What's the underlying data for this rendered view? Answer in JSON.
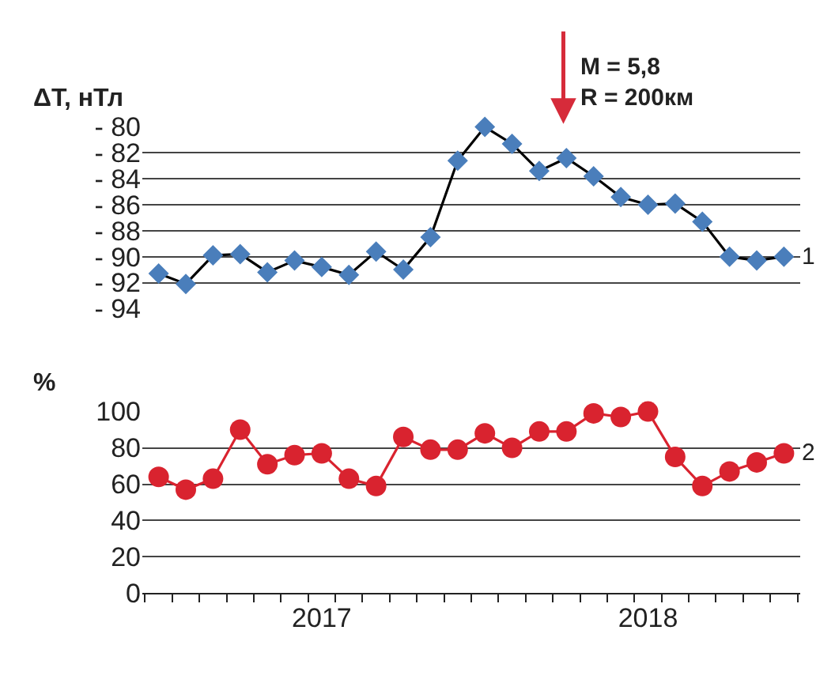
{
  "chart_data": [
    {
      "type": "line",
      "ylabel": "ΔT, нТл",
      "marker": "diamond",
      "grid": "y",
      "tick_labels": "y",
      "categories": [
        null,
        null,
        null,
        null,
        null,
        null,
        null,
        null,
        null,
        null,
        null,
        null,
        null,
        null,
        null,
        null,
        null,
        null,
        null,
        null,
        null,
        null,
        null,
        null
      ],
      "ylim": [
        -94,
        -80
      ],
      "yticks": [
        -80,
        -82,
        -84,
        -86,
        -88,
        -90,
        -92,
        -94
      ],
      "series": [
        {
          "name": "1",
          "color": "#4a7ebb",
          "values": [
            -91.3,
            -92.1,
            -89.9,
            -89.8,
            -91.2,
            -90.3,
            -90.8,
            -91.4,
            -89.6,
            -91.0,
            -88.5,
            -82.6,
            -80.0,
            -81.3,
            -83.4,
            -82.4,
            -83.8,
            -85.4,
            -86.0,
            -85.9,
            -87.3,
            -90.0,
            -90.3,
            -90.0
          ]
        }
      ],
      "annotations": [
        "M = 5,8\nR = 200км"
      ]
    },
    {
      "type": "line",
      "ylabel": "%",
      "marker": "circle",
      "grid": "y",
      "categories": [
        null,
        null,
        null,
        null,
        null,
        null,
        "2017",
        null,
        null,
        null,
        null,
        null,
        null,
        null,
        null,
        null,
        null,
        null,
        "2018",
        null,
        null,
        null,
        null,
        null
      ],
      "ylim": [
        0,
        100
      ],
      "yticks": [
        0,
        20,
        40,
        60,
        80,
        100
      ],
      "series": [
        {
          "name": "2",
          "color": "#d9232f",
          "values": [
            64,
            57,
            63,
            90,
            71,
            76,
            77,
            63,
            59,
            86,
            79,
            79,
            88,
            80,
            89,
            89,
            99,
            97,
            100,
            75,
            59,
            67,
            72,
            77
          ]
        }
      ]
    }
  ]
}
